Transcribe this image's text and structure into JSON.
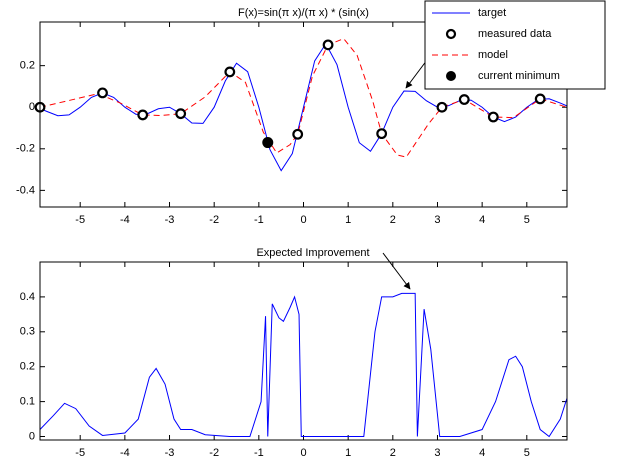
{
  "chart_data": [
    {
      "type": "line",
      "title": "F(x)=sin(π x)/(π x) * (sin(x)",
      "xlim": [
        -5.9,
        5.9
      ],
      "xticks": [
        -5,
        -4,
        -3,
        -2,
        -1,
        0,
        1,
        2,
        3,
        4,
        5
      ],
      "ylim": [
        -0.48,
        0.41
      ],
      "yticks": [
        -0.4,
        -0.2,
        0,
        0.2
      ],
      "legend": "northeast",
      "series": [
        {
          "name": "target",
          "color": "#0000ff",
          "mode": "line",
          "line_style": "solid",
          "x": [
            -5.9,
            -5.75,
            -5.5,
            -5.25,
            -5,
            -4.75,
            -4.5,
            -4.25,
            -4,
            -3.75,
            -3.5,
            -3.25,
            -3,
            -2.75,
            -2.5,
            -2.25,
            -2,
            -1.75,
            -1.5,
            -1.25,
            -1,
            -0.75,
            -0.5,
            -0.25,
            0,
            0.25,
            0.5,
            0.75,
            1,
            1.25,
            1.5,
            1.75,
            2,
            2.25,
            2.5,
            2.75,
            3,
            3.25,
            3.5,
            3.75,
            4,
            4.25,
            4.5,
            4.75,
            5,
            5.25,
            5.5,
            5.75,
            5.9
          ],
          "values": [
            -0.0062,
            -0.0199,
            -0.0408,
            -0.0368,
            0,
            0.0473,
            0.0691,
            0.0474,
            0,
            -0.0343,
            -0.0319,
            -0.0075,
            0,
            -0.0312,
            -0.0762,
            -0.0778,
            0,
            0.1266,
            0.2117,
            0.1709,
            0,
            -0.2046,
            -0.3052,
            -0.2227,
            0,
            0.2227,
            0.3052,
            0.2046,
            0,
            -0.1709,
            -0.2117,
            -0.1266,
            0,
            0.0778,
            0.0762,
            0.0312,
            0,
            0.0075,
            0.0319,
            0.0343,
            0,
            -0.0474,
            -0.0691,
            -0.0473,
            0,
            0.0368,
            0.0408,
            0.0199,
            0.0062
          ]
        },
        {
          "name": "measured data",
          "color": "#000000",
          "mode": "markers",
          "marker_fill": "open",
          "x": [
            -5.9,
            -4.5,
            -3.6,
            -2.75,
            -1.65,
            -0.13,
            0.55,
            1.75,
            3.1,
            3.6,
            4.25,
            5.3
          ],
          "values": [
            0,
            0.069,
            -0.037,
            -0.031,
            0.17,
            -0.13,
            0.3,
            -0.127,
            0,
            0.037,
            -0.047,
            0.04
          ]
        },
        {
          "name": "model",
          "color": "#ff0000",
          "mode": "line",
          "line_style": "dashed",
          "x": [
            -5.9,
            -5.3,
            -4.6,
            -4.1,
            -3.6,
            -3.2,
            -2.75,
            -2.2,
            -1.65,
            -1.3,
            -0.9,
            -0.6,
            -0.3,
            -0.13,
            0.2,
            0.55,
            0.9,
            1.2,
            1.55,
            1.75,
            2.1,
            2.3,
            2.8,
            3.1,
            3.6,
            4.25,
            4.7,
            5.3,
            5.9
          ],
          "values": [
            0,
            0.03,
            0.065,
            0.02,
            -0.037,
            -0.04,
            -0.031,
            0.05,
            0.17,
            0.12,
            -0.12,
            -0.22,
            -0.18,
            -0.13,
            0.15,
            0.3,
            0.33,
            0.25,
            0.03,
            -0.127,
            -0.23,
            -0.24,
            -0.08,
            0,
            0.037,
            -0.047,
            -0.05,
            0.04,
            0
          ]
        },
        {
          "name": "current minimum",
          "color": "#000000",
          "mode": "markers",
          "marker_fill": "filled",
          "x": [
            -0.8
          ],
          "values": [
            -0.17
          ]
        }
      ]
    },
    {
      "type": "line",
      "annotation": "Expected Improvement",
      "xlim": [
        -5.9,
        5.9
      ],
      "xticks": [
        -5,
        -4,
        -3,
        -2,
        -1,
        0,
        1,
        2,
        3,
        4,
        5
      ],
      "ylim": [
        -0.01,
        0.5
      ],
      "yticks": [
        0,
        0.1,
        0.2,
        0.3,
        0.4
      ],
      "series": [
        {
          "color": "#0000ff",
          "mode": "line",
          "line_style": "solid",
          "x": [
            -5.9,
            -5.6,
            -5.35,
            -5.1,
            -4.8,
            -4.5,
            -4,
            -3.7,
            -3.45,
            -3.3,
            -3.1,
            -2.9,
            -2.75,
            -2.5,
            -2.2,
            -1.65,
            -1.2,
            -0.95,
            -0.85,
            -0.8,
            -0.7,
            -0.55,
            -0.45,
            -0.3,
            -0.2,
            -0.1,
            -0.05,
            0.55,
            1.35,
            1.6,
            1.75,
            2,
            2.2,
            2.5,
            2.55,
            2.7,
            2.85,
            3.05,
            3.5,
            4,
            4.3,
            4.6,
            4.75,
            4.9,
            5.1,
            5.3,
            5.5,
            5.75,
            5.9
          ],
          "values": [
            0.02,
            0.06,
            0.095,
            0.08,
            0.03,
            0.003,
            0.01,
            0.05,
            0.17,
            0.195,
            0.15,
            0.05,
            0.02,
            0.02,
            0.005,
            0,
            0,
            0.1,
            0.345,
            0,
            0.38,
            0.34,
            0.33,
            0.37,
            0.4,
            0.35,
            0,
            0,
            0,
            0.3,
            0.4,
            0.4,
            0.41,
            0.41,
            0,
            0.365,
            0.25,
            0,
            0,
            0.02,
            0.1,
            0.22,
            0.23,
            0.2,
            0.1,
            0.02,
            0,
            0.05,
            0.11
          ]
        }
      ]
    }
  ]
}
